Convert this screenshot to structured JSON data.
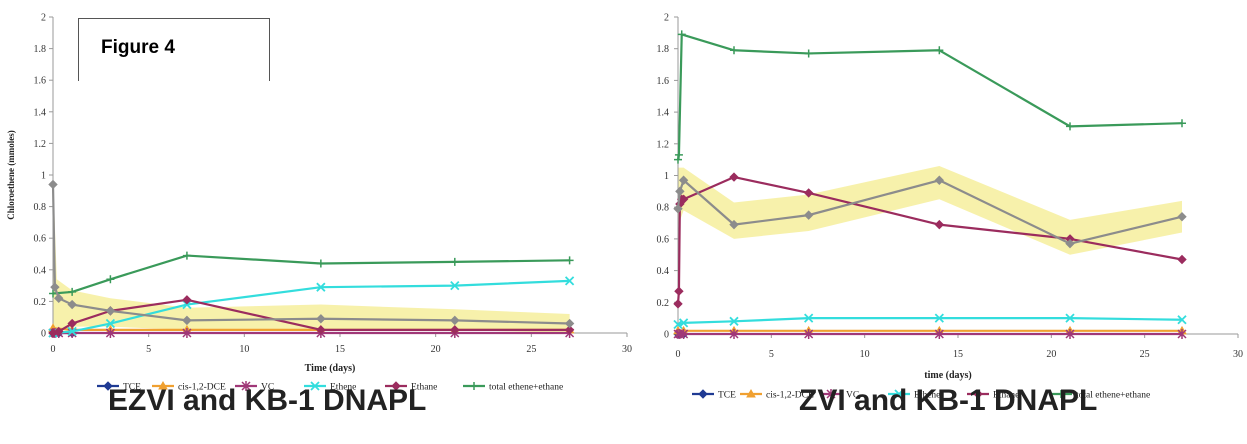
{
  "figure_label": "Figure 4",
  "captions": [
    "EZVI and KB-1 DNAPL",
    "ZVI and KB-1 DNAPL"
  ],
  "colors": {
    "TCE": "#1f3a93",
    "cis-1,2-DCE": "#f0a030",
    "VC": "#a03878",
    "Ethene": "#33dddd",
    "Ethane": "#9b2c5e",
    "total ethene+ethane": "#3a9a5a",
    "gray": "#8c8c8c",
    "highlight": "#f6ef9c"
  },
  "chart_data": [
    {
      "type": "line",
      "title": "",
      "xlabel": "Time (days)",
      "ylabel": "Chloroethene (mmoles)",
      "xlim": [
        0,
        30
      ],
      "ylim": [
        0,
        2
      ],
      "xticks": [
        "0",
        "5",
        "10",
        "15",
        "20",
        "25",
        "30"
      ],
      "yticks": [
        "0",
        "0.2",
        "0.4",
        "0.6",
        "0.8",
        "1",
        "1.2",
        "1.4",
        "1.6",
        "1.8",
        "2"
      ],
      "legend_position": "bottom",
      "legend": [
        "TCE",
        "cis-1,2-DCE",
        "VC",
        "Ethene",
        "Ethane",
        "total ethene+ethane"
      ],
      "series": [
        {
          "name": "TCE",
          "marker": "diamond",
          "x": [
            0,
            0.1,
            0.3,
            1
          ],
          "y": [
            0,
            0,
            0,
            0
          ]
        },
        {
          "name": "cis-1,2-DCE",
          "marker": "triangle",
          "x": [
            0,
            1,
            3,
            7,
            14,
            21,
            27
          ],
          "y": [
            0.03,
            0.02,
            0.02,
            0.02,
            0.02,
            0.02,
            0.02
          ]
        },
        {
          "name": "VC",
          "marker": "star",
          "x": [
            0,
            0.1,
            0.3,
            1,
            3,
            7,
            14,
            21,
            27
          ],
          "y": [
            0,
            0,
            0,
            0,
            0,
            0,
            0,
            0,
            0
          ]
        },
        {
          "name": "Ethene",
          "marker": "cross",
          "x": [
            0,
            1,
            3,
            7,
            14,
            21,
            27
          ],
          "y": [
            0,
            0.01,
            0.06,
            0.18,
            0.29,
            0.3,
            0.33
          ]
        },
        {
          "name": "Ethane",
          "marker": "diamond",
          "x": [
            0,
            0.3,
            1,
            3,
            7,
            14,
            21,
            27
          ],
          "y": [
            0,
            0.01,
            0.06,
            0.14,
            0.21,
            0.02,
            0.02,
            0.02
          ]
        },
        {
          "name": "total ethene+ethane",
          "marker": "plus",
          "x": [
            0,
            1,
            3,
            7,
            14,
            21,
            27
          ],
          "y": [
            0.25,
            0.26,
            0.34,
            0.49,
            0.44,
            0.45,
            0.46
          ]
        },
        {
          "name": "",
          "marker": "diamond",
          "color": "gray",
          "x": [
            0,
            0.1,
            0.3,
            1,
            3,
            7,
            14,
            21,
            27
          ],
          "y": [
            0.94,
            0.29,
            0.22,
            0.18,
            0.14,
            0.08,
            0.09,
            0.08,
            0.06
          ]
        }
      ],
      "highlight": {
        "x": [
          0,
          0.2,
          1,
          3,
          7,
          14,
          21,
          27
        ],
        "upper": [
          1.0,
          0.34,
          0.27,
          0.22,
          0.16,
          0.18,
          0.15,
          0.12
        ],
        "lower": [
          0.0,
          0.0,
          0.04,
          0.04,
          0.02,
          0.02,
          0.02,
          0.0
        ]
      }
    },
    {
      "type": "line",
      "title": "",
      "xlabel": "time (days)",
      "ylabel": "",
      "xlim": [
        0,
        30
      ],
      "ylim": [
        0,
        2
      ],
      "xticks": [
        "0",
        "5",
        "10",
        "15",
        "20",
        "25",
        "30"
      ],
      "yticks": [
        "0",
        "0.2",
        "0.4",
        "0.6",
        "0.8",
        "1",
        "1.2",
        "1.4",
        "1.6",
        "1.8",
        "2"
      ],
      "legend_position": "bottom",
      "legend": [
        "TCE",
        "cis-1,2-DCE",
        "VC",
        "Ethene",
        "Ethane",
        "total ethene+ethane"
      ],
      "series": [
        {
          "name": "TCE",
          "marker": "diamond",
          "x": [
            0,
            0.1,
            0.3
          ],
          "y": [
            0,
            0,
            0
          ]
        },
        {
          "name": "cis-1,2-DCE",
          "marker": "triangle",
          "x": [
            0,
            0.3,
            3,
            7,
            14,
            21,
            27
          ],
          "y": [
            0.02,
            0.02,
            0.02,
            0.02,
            0.02,
            0.02,
            0.02
          ]
        },
        {
          "name": "VC",
          "marker": "star",
          "x": [
            0,
            0.1,
            0.3,
            3,
            7,
            14,
            21,
            27
          ],
          "y": [
            0,
            0,
            0,
            0,
            0,
            0,
            0,
            0
          ]
        },
        {
          "name": "Ethene",
          "marker": "cross",
          "x": [
            0,
            0.3,
            3,
            7,
            14,
            21,
            27
          ],
          "y": [
            0.06,
            0.07,
            0.08,
            0.1,
            0.1,
            0.1,
            0.09
          ]
        },
        {
          "name": "Ethane",
          "marker": "diamond",
          "x": [
            0,
            0.05,
            0.1,
            0.2,
            0.3,
            3,
            7,
            14,
            21,
            27
          ],
          "y": [
            0.19,
            0.27,
            0.82,
            0.85,
            0.85,
            0.99,
            0.89,
            0.69,
            0.6,
            0.47
          ]
        },
        {
          "name": "total ethene+ethane",
          "marker": "plus",
          "x": [
            0,
            0.05,
            0.2,
            3,
            7,
            14,
            21,
            27
          ],
          "y": [
            1.1,
            1.13,
            1.89,
            1.79,
            1.77,
            1.79,
            1.31,
            1.33
          ]
        },
        {
          "name": "",
          "marker": "diamond",
          "color": "gray",
          "x": [
            0,
            0.1,
            0.3,
            3,
            7,
            14,
            21,
            27
          ],
          "y": [
            0.79,
            0.9,
            0.97,
            0.69,
            0.75,
            0.97,
            0.57,
            0.74
          ]
        }
      ],
      "highlight": {
        "x": [
          0,
          0.3,
          3,
          7,
          14,
          21,
          27
        ],
        "upper": [
          1.05,
          1.05,
          0.83,
          0.88,
          1.06,
          0.72,
          0.84
        ],
        "lower": [
          0.68,
          0.78,
          0.6,
          0.65,
          0.85,
          0.5,
          0.64
        ]
      }
    }
  ]
}
